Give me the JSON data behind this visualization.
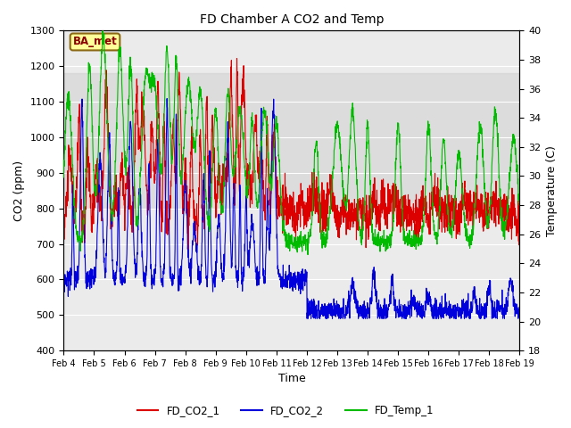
{
  "title": "FD Chamber A CO2 and Temp",
  "xlabel": "Time",
  "ylabel_left": "CO2 (ppm)",
  "ylabel_right": "Temperature (C)",
  "co2_ylim": [
    400,
    1300
  ],
  "temp_ylim": [
    18,
    40
  ],
  "co2_yticks": [
    400,
    500,
    600,
    700,
    800,
    900,
    1000,
    1100,
    1200,
    1300
  ],
  "temp_yticks": [
    18,
    20,
    22,
    24,
    26,
    28,
    30,
    32,
    34,
    36,
    38,
    40
  ],
  "date_labels": [
    "Feb 4",
    "Feb 5",
    "Feb 6",
    "Feb 7",
    "Feb 8",
    "Feb 9",
    "Feb 10",
    "Feb 11",
    "Feb 12",
    "Feb 13",
    "Feb 14",
    "Feb 15",
    "Feb 16",
    "Feb 17",
    "Feb 18",
    "Feb 19"
  ],
  "legend_labels": [
    "FD_CO2_1",
    "FD_CO2_2",
    "FD_Temp_1"
  ],
  "line_colors": [
    "#dd0000",
    "#0000dd",
    "#00bb00"
  ],
  "bg_color": "#ebebeb",
  "shade_band_co2": [
    800,
    1180
  ],
  "annotation_text": "BA_met",
  "annotation_color": "#8b0000",
  "annotation_bg": "#ffff99",
  "annotation_border": "#8b6914",
  "figsize": [
    6.4,
    4.8
  ],
  "dpi": 100
}
